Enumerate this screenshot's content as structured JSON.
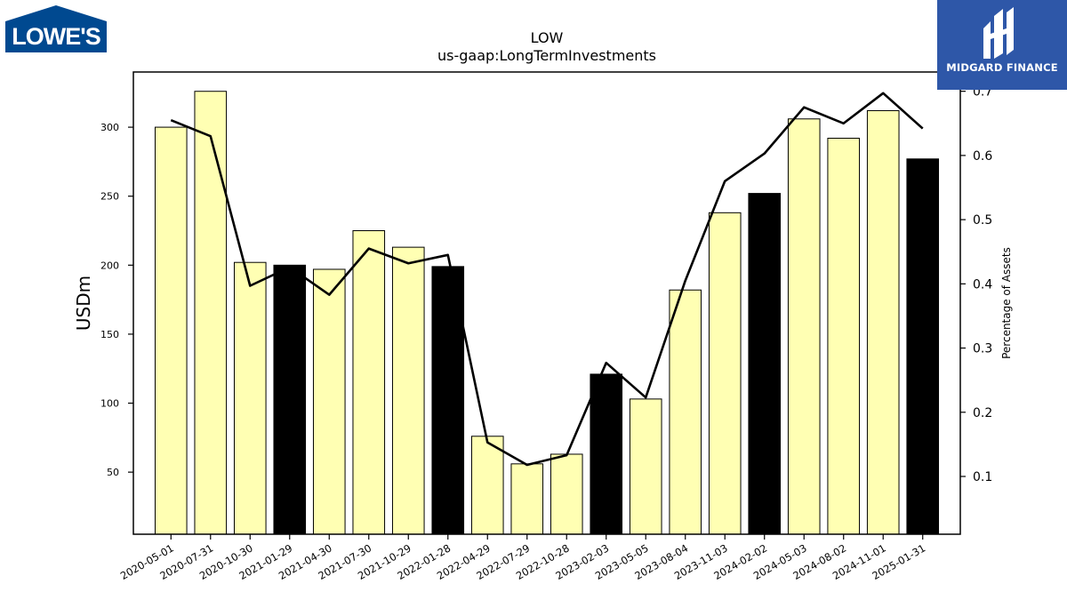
{
  "chart_data": {
    "type": "bar",
    "title": "LOW",
    "subtitle": "us-gaap:LongTermInvestments",
    "ylabel": "USDm",
    "y2label": "Percentage of Assets",
    "ylim": [
      5,
      340
    ],
    "y2lim": [
      0.01,
      0.73
    ],
    "yticks": [
      50,
      100,
      150,
      200,
      250,
      300
    ],
    "y2ticks": [
      0.1,
      0.2,
      0.3,
      0.4,
      0.5,
      0.6,
      0.7
    ],
    "categories": [
      "2020-05-01",
      "2020-07-31",
      "2020-10-30",
      "2021-01-29",
      "2021-04-30",
      "2021-07-30",
      "2021-10-29",
      "2022-01-28",
      "2022-04-29",
      "2022-07-29",
      "2022-10-28",
      "2023-02-03",
      "2023-05-05",
      "2023-08-04",
      "2023-11-03",
      "2024-02-02",
      "2024-05-03",
      "2024-08-02",
      "2024-11-01",
      "2025-01-31"
    ],
    "series": [
      {
        "type": "bar",
        "values": [
          300,
          326,
          202,
          200,
          197,
          225,
          213,
          199,
          76,
          56,
          63,
          121,
          103,
          182,
          238,
          252,
          306,
          292,
          312,
          277
        ],
        "highlight": [
          false,
          false,
          false,
          true,
          false,
          false,
          false,
          true,
          false,
          false,
          false,
          true,
          false,
          false,
          false,
          true,
          false,
          false,
          false,
          true
        ],
        "color": "#ffffb3",
        "highlight_color": "#000000"
      },
      {
        "type": "line",
        "axis": "right",
        "values": [
          0.655,
          0.63,
          0.397,
          0.426,
          0.383,
          0.455,
          0.432,
          0.445,
          0.153,
          0.118,
          0.133,
          0.277,
          0.223,
          0.405,
          0.56,
          0.603,
          0.675,
          0.65,
          0.697,
          0.642
        ],
        "color": "#000000"
      }
    ],
    "grid": false
  },
  "logos": {
    "left_text": "LOWE'S",
    "right_text": "MIDGARD FINANCE",
    "left_color": "#004990",
    "right_color": "#2e57a8"
  }
}
